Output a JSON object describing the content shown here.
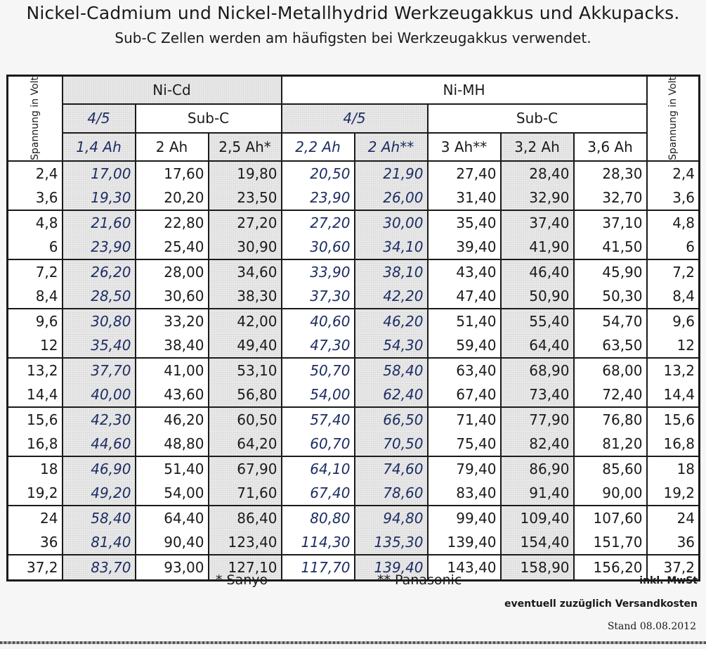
{
  "title": "Nickel-Cadmium und Nickel-Metallhydrid Werkzeugakkus und Akkupacks.",
  "subtitle": "Sub-C Zellen werden am häufigsten bei Werkzeugakkus verwendet.",
  "header": {
    "voltage_label": "Spannung in Volt",
    "nicd": "Ni-Cd",
    "nimh": "Ni-MH",
    "nicd_45": "4/5",
    "nicd_subc": "Sub-C",
    "nimh_45": "4/5",
    "nimh_subc": "Sub-C",
    "cols": [
      "1,4 Ah",
      "2 Ah",
      "2,5 Ah*",
      "2,2 Ah",
      "2 Ah**",
      "3 Ah**",
      "3,2 Ah",
      "3,6 Ah"
    ]
  },
  "rows": [
    {
      "v": "2,4",
      "vals": [
        "17,00",
        "17,60",
        "19,80",
        "20,50",
        "21,90",
        "27,40",
        "28,40",
        "28,30"
      ]
    },
    {
      "v": "3,6",
      "vals": [
        "19,30",
        "20,20",
        "23,50",
        "23,90",
        "26,00",
        "31,40",
        "32,90",
        "32,70"
      ]
    },
    {
      "v": "4,8",
      "vals": [
        "21,60",
        "22,80",
        "27,20",
        "27,20",
        "30,00",
        "35,40",
        "37,40",
        "37,10"
      ]
    },
    {
      "v": "6",
      "vals": [
        "23,90",
        "25,40",
        "30,90",
        "30,60",
        "34,10",
        "39,40",
        "41,90",
        "41,50"
      ]
    },
    {
      "v": "7,2",
      "vals": [
        "26,20",
        "28,00",
        "34,60",
        "33,90",
        "38,10",
        "43,40",
        "46,40",
        "45,90"
      ]
    },
    {
      "v": "8,4",
      "vals": [
        "28,50",
        "30,60",
        "38,30",
        "37,30",
        "42,20",
        "47,40",
        "50,90",
        "50,30"
      ]
    },
    {
      "v": "9,6",
      "vals": [
        "30,80",
        "33,20",
        "42,00",
        "40,60",
        "46,20",
        "51,40",
        "55,40",
        "54,70"
      ]
    },
    {
      "v": "12",
      "vals": [
        "35,40",
        "38,40",
        "49,40",
        "47,30",
        "54,30",
        "59,40",
        "64,40",
        "63,50"
      ]
    },
    {
      "v": "13,2",
      "vals": [
        "37,70",
        "41,00",
        "53,10",
        "50,70",
        "58,40",
        "63,40",
        "68,90",
        "68,00"
      ]
    },
    {
      "v": "14,4",
      "vals": [
        "40,00",
        "43,60",
        "56,80",
        "54,00",
        "62,40",
        "67,40",
        "73,40",
        "72,40"
      ]
    },
    {
      "v": "15,6",
      "vals": [
        "42,30",
        "46,20",
        "60,50",
        "57,40",
        "66,50",
        "71,40",
        "77,90",
        "76,80"
      ]
    },
    {
      "v": "16,8",
      "vals": [
        "44,60",
        "48,80",
        "64,20",
        "60,70",
        "70,50",
        "75,40",
        "82,40",
        "81,20"
      ]
    },
    {
      "v": "18",
      "vals": [
        "46,90",
        "51,40",
        "67,90",
        "64,10",
        "74,60",
        "79,40",
        "86,90",
        "85,60"
      ]
    },
    {
      "v": "19,2",
      "vals": [
        "49,20",
        "54,00",
        "71,60",
        "67,40",
        "78,60",
        "83,40",
        "91,40",
        "90,00"
      ]
    },
    {
      "v": "24",
      "vals": [
        "58,40",
        "64,40",
        "86,40",
        "80,80",
        "94,80",
        "99,40",
        "109,40",
        "107,60"
      ]
    },
    {
      "v": "36",
      "vals": [
        "81,40",
        "90,40",
        "123,40",
        "114,30",
        "135,30",
        "139,40",
        "154,40",
        "151,70"
      ]
    },
    {
      "v": "37,2",
      "vals": [
        "83,70",
        "93,00",
        "127,10",
        "117,70",
        "139,40",
        "143,40",
        "158,90",
        "156,20"
      ]
    }
  ],
  "footer": {
    "sanyo": "* Sanyo",
    "panasonic": "** Panasonic",
    "vat": "inkl. MwSt",
    "shipping": "eventuell zuzüglich Versandkosten",
    "date": "Stand 08.08.2012"
  }
}
